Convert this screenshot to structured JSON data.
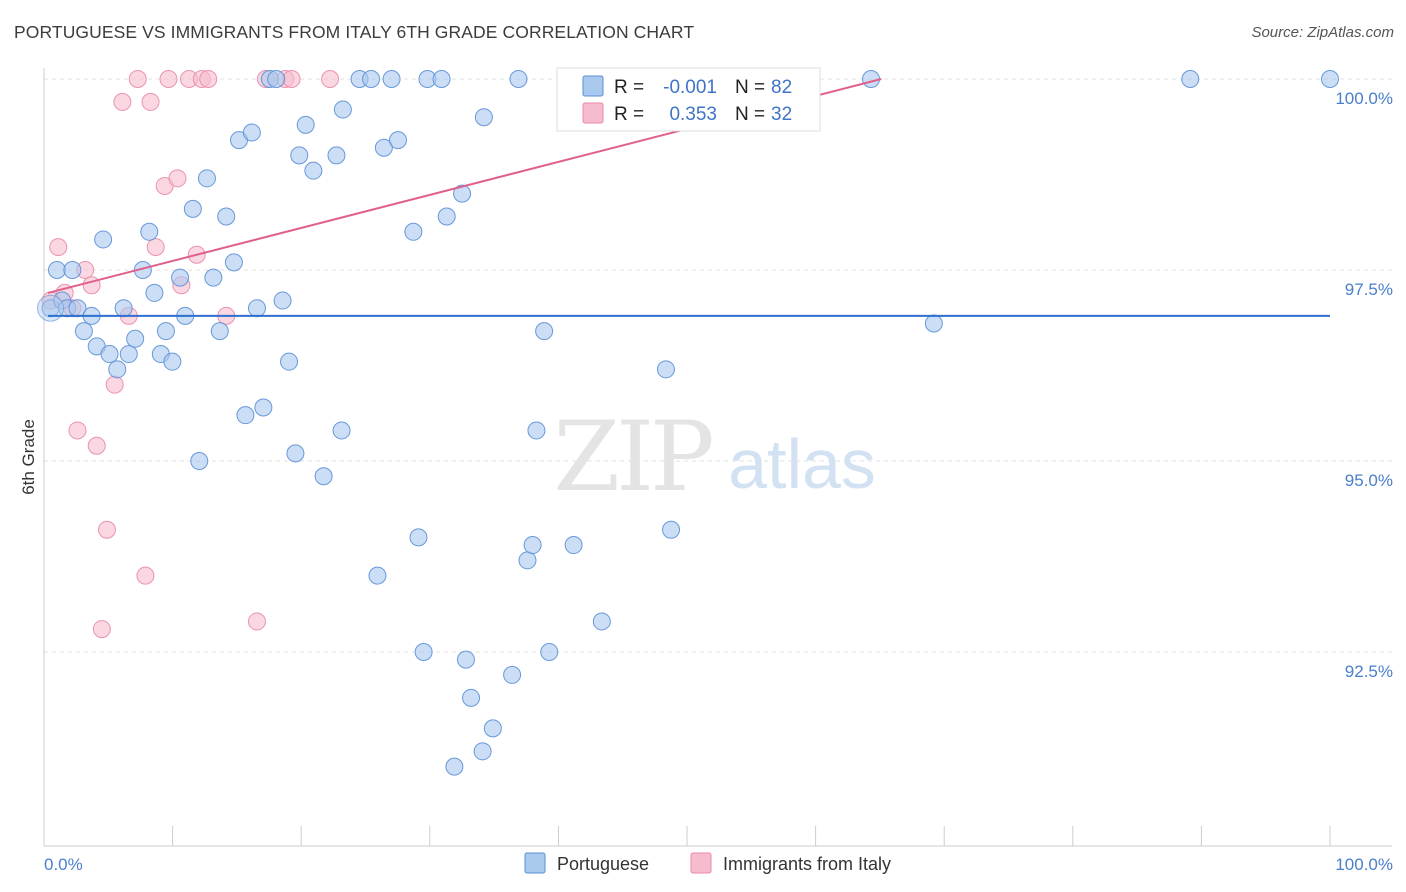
{
  "header": {
    "title": "PORTUGUESE VS IMMIGRANTS FROM ITALY 6TH GRADE CORRELATION CHART",
    "source": "Source: ZipAtlas.com"
  },
  "watermark": {
    "zip": "ZIP",
    "atlas": "atlas"
  },
  "chart_data": {
    "type": "scatter",
    "title": "PORTUGUESE VS IMMIGRANTS FROM ITALY 6TH GRADE CORRELATION CHART",
    "xlabel": "",
    "ylabel": "6th Grade",
    "xlim": [
      0,
      100
    ],
    "ylim": [
      90.0,
      100.4
    ],
    "x_tick_labels": [
      "0.0%",
      "100.0%"
    ],
    "y_ticks": [
      100.0,
      97.5,
      95.0,
      92.5
    ],
    "y_tick_labels": [
      "100.0%",
      "97.5%",
      "95.0%",
      "92.5%"
    ],
    "grid": true,
    "legend": {
      "placement": "top-center",
      "entries": [
        {
          "r_label": "R =",
          "r_value": "-0.001",
          "n_label": "N =",
          "n_value": "82"
        },
        {
          "r_label": "R =",
          "r_value": "0.353",
          "n_label": "N =",
          "n_value": "32"
        }
      ]
    },
    "colors": {
      "blue_fill": "#a9c8ee",
      "blue_stroke": "#5b8fd6",
      "blue_line": "#2f6fcf",
      "pink_fill": "#f6bccd",
      "pink_stroke": "#e98aa9",
      "pink_line": "#e0608c"
    },
    "series": [
      {
        "name": "Portuguese",
        "trend": {
          "x0": 0,
          "y0": 96.9,
          "x1": 100,
          "y1": 96.9
        },
        "points": [
          [
            0.2,
            97.0
          ],
          [
            0.7,
            97.5
          ],
          [
            1.1,
            97.1
          ],
          [
            1.5,
            97.0
          ],
          [
            1.9,
            97.5
          ],
          [
            2.3,
            97.0
          ],
          [
            2.8,
            96.7
          ],
          [
            3.4,
            96.9
          ],
          [
            3.8,
            96.5
          ],
          [
            4.3,
            97.9
          ],
          [
            4.8,
            96.4
          ],
          [
            5.4,
            96.2
          ],
          [
            5.9,
            97.0
          ],
          [
            6.3,
            96.4
          ],
          [
            6.8,
            96.6
          ],
          [
            7.4,
            97.5
          ],
          [
            7.9,
            98.0
          ],
          [
            8.3,
            97.2
          ],
          [
            8.8,
            96.4
          ],
          [
            9.2,
            96.7
          ],
          [
            9.7,
            96.3
          ],
          [
            10.3,
            97.4
          ],
          [
            10.7,
            96.9
          ],
          [
            11.3,
            98.3
          ],
          [
            11.8,
            95.0
          ],
          [
            12.4,
            98.7
          ],
          [
            12.9,
            97.4
          ],
          [
            13.4,
            96.7
          ],
          [
            13.9,
            98.2
          ],
          [
            14.5,
            97.6
          ],
          [
            14.9,
            99.2
          ],
          [
            15.4,
            95.6
          ],
          [
            15.9,
            99.3
          ],
          [
            16.3,
            97.0
          ],
          [
            16.8,
            95.7
          ],
          [
            17.3,
            100.0
          ],
          [
            17.8,
            100.0
          ],
          [
            18.3,
            97.1
          ],
          [
            18.8,
            96.3
          ],
          [
            19.3,
            95.1
          ],
          [
            19.6,
            99.0
          ],
          [
            20.1,
            99.4
          ],
          [
            20.7,
            98.8
          ],
          [
            21.5,
            94.8
          ],
          [
            22.5,
            99.0
          ],
          [
            22.9,
            95.4
          ],
          [
            23.0,
            99.6
          ],
          [
            24.3,
            100.0
          ],
          [
            25.2,
            100.0
          ],
          [
            25.7,
            93.5
          ],
          [
            26.2,
            99.1
          ],
          [
            26.8,
            100.0
          ],
          [
            27.3,
            99.2
          ],
          [
            28.5,
            98.0
          ],
          [
            28.9,
            94.0
          ],
          [
            29.3,
            92.5
          ],
          [
            29.6,
            100.0
          ],
          [
            30.7,
            100.0
          ],
          [
            31.1,
            98.2
          ],
          [
            31.7,
            91.0
          ],
          [
            32.3,
            98.5
          ],
          [
            32.6,
            92.4
          ],
          [
            33.0,
            91.9
          ],
          [
            33.9,
            91.2
          ],
          [
            34.0,
            99.5
          ],
          [
            34.7,
            91.5
          ],
          [
            36.2,
            92.2
          ],
          [
            36.7,
            100.0
          ],
          [
            37.4,
            93.7
          ],
          [
            37.8,
            93.9
          ],
          [
            38.1,
            95.4
          ],
          [
            38.7,
            96.7
          ],
          [
            39.1,
            92.5
          ],
          [
            41.0,
            93.9
          ],
          [
            43.2,
            92.9
          ],
          [
            45.5,
            100.0
          ],
          [
            48.2,
            96.2
          ],
          [
            48.6,
            94.1
          ],
          [
            64.2,
            100.0
          ],
          [
            69.1,
            96.8
          ],
          [
            89.1,
            100.0
          ],
          [
            100.0,
            100.0
          ]
        ]
      },
      {
        "name": "Immigrants from Italy",
        "trend": {
          "x0": 0,
          "y0": 97.2,
          "x1": 65,
          "y1": 100.0
        },
        "points": [
          [
            0.2,
            97.1
          ],
          [
            0.8,
            97.8
          ],
          [
            1.3,
            97.2
          ],
          [
            1.9,
            97.0
          ],
          [
            2.3,
            95.4
          ],
          [
            2.9,
            97.5
          ],
          [
            3.4,
            97.3
          ],
          [
            3.8,
            95.2
          ],
          [
            4.2,
            92.8
          ],
          [
            4.6,
            94.1
          ],
          [
            5.2,
            96.0
          ],
          [
            5.8,
            99.7
          ],
          [
            6.3,
            96.9
          ],
          [
            7.0,
            100.0
          ],
          [
            7.6,
            93.5
          ],
          [
            8.0,
            99.7
          ],
          [
            8.4,
            97.8
          ],
          [
            9.1,
            98.6
          ],
          [
            9.4,
            100.0
          ],
          [
            10.1,
            98.7
          ],
          [
            10.4,
            97.3
          ],
          [
            11.0,
            100.0
          ],
          [
            11.6,
            97.7
          ],
          [
            12.0,
            100.0
          ],
          [
            12.5,
            100.0
          ],
          [
            13.9,
            96.9
          ],
          [
            16.3,
            92.9
          ],
          [
            17.0,
            100.0
          ],
          [
            18.5,
            100.0
          ],
          [
            19.0,
            100.0
          ],
          [
            22.0,
            100.0
          ],
          [
            45.2,
            100.0
          ]
        ]
      }
    ]
  },
  "bottom_legend": {
    "items": [
      {
        "label": "Portuguese"
      },
      {
        "label": "Immigrants from Italy"
      }
    ]
  }
}
